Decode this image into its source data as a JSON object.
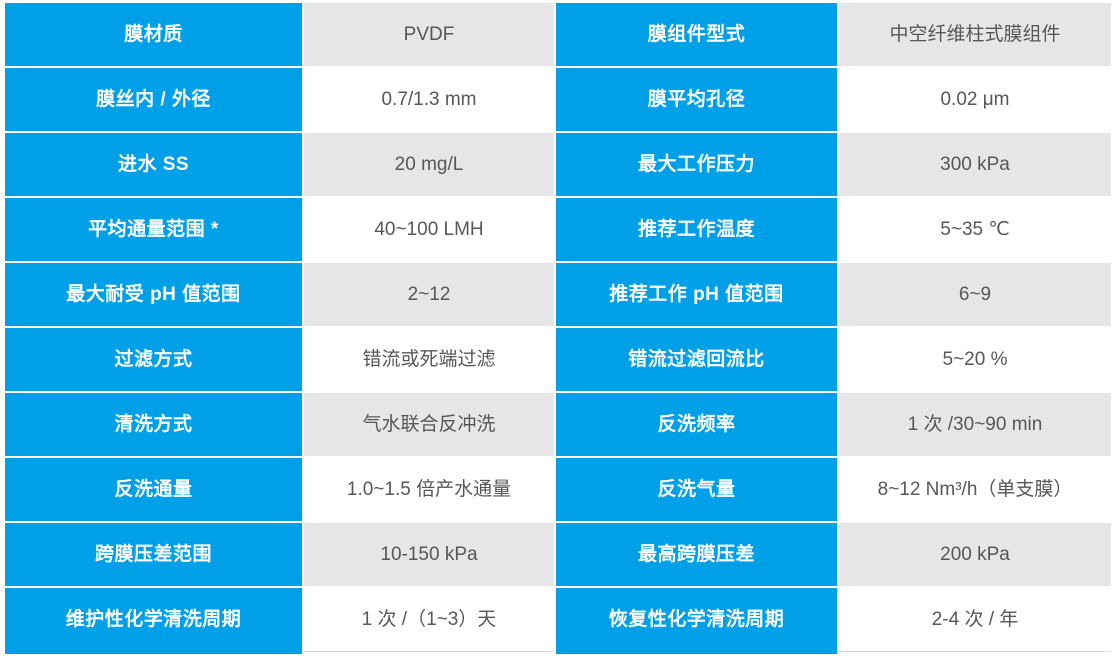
{
  "table": {
    "colors": {
      "accent": "#00A0E9",
      "value_alt_bg": "#E6E6E6",
      "value_bg": "#FFFFFF",
      "value_text": "#575757",
      "label_text": "#FFFFFF"
    },
    "rows": [
      {
        "label1": "膜材质",
        "value1": "PVDF",
        "label2": "膜组件型式",
        "value2": "中空纤维柱式膜组件"
      },
      {
        "label1": "膜丝内 / 外径",
        "value1": "0.7/1.3 mm",
        "label2": "膜平均孔径",
        "value2": "0.02 μm"
      },
      {
        "label1": "进水 SS",
        "value1": "20 mg/L",
        "label2": "最大工作压力",
        "value2": "300 kPa"
      },
      {
        "label1": "平均通量范围 *",
        "value1": "40~100 LMH",
        "label2": "推荐工作温度",
        "value2": "5~35 ℃"
      },
      {
        "label1": "最大耐受 pH 值范围",
        "value1": "2~12",
        "label2": "推荐工作 pH 值范围",
        "value2": "6~9"
      },
      {
        "label1": "过滤方式",
        "value1": "错流或死端过滤",
        "label2": "错流过滤回流比",
        "value2": "5~20 %"
      },
      {
        "label1": "清洗方式",
        "value1": "气水联合反冲洗",
        "label2": "反洗频率",
        "value2": "1 次 /30~90 min"
      },
      {
        "label1": "反洗通量",
        "value1": "1.0~1.5 倍产水通量",
        "label2": "反洗气量",
        "value2": "8~12 Nm³/h（单支膜）"
      },
      {
        "label1": "跨膜压差范围",
        "value1": "10-150 kPa",
        "label2": "最高跨膜压差",
        "value2": "200 kPa"
      },
      {
        "label1": "维护性化学清洗周期",
        "value1": "1 次 /（1~3）天",
        "label2": "恢复性化学清洗周期",
        "value2": "2-4 次 / 年"
      }
    ]
  }
}
